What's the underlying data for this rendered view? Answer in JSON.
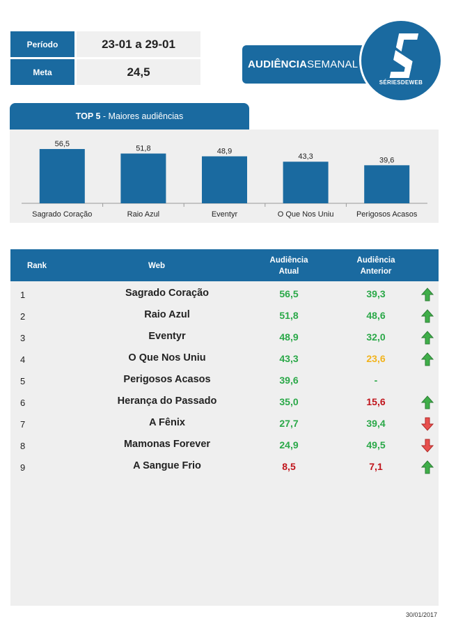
{
  "info": {
    "period_label": "Período",
    "period_value": "23-01 a 29-01",
    "goal_label": "Meta",
    "goal_value": "24,5"
  },
  "banner": {
    "bold": "AUDIÊNCIA",
    "light": "SEMANAL"
  },
  "logo": {
    "text": "SÉRIESDEWEB"
  },
  "chart_section": {
    "title_bold": "TOP 5",
    "title_rest": " - Maiores audiências"
  },
  "chart_data": {
    "type": "bar",
    "title": "TOP 5 - Maiores audiências",
    "categories": [
      "Sagrado Coração",
      "Raio Azul",
      "Eventyr",
      "O Que Nos Uniu",
      "Perigosos Acasos"
    ],
    "values": [
      56.5,
      51.8,
      48.9,
      43.3,
      39.6
    ],
    "value_labels": [
      "56,5",
      "51,8",
      "48,9",
      "43,3",
      "39,6"
    ],
    "ylim": [
      0,
      70
    ],
    "grid": false,
    "bar_color": "#1a6aa0"
  },
  "table": {
    "headers": {
      "rank": "Rank",
      "web": "Web",
      "current_l1": "Audiência",
      "current_l2": "Atual",
      "previous_l1": "Audiência",
      "previous_l2": "Anterior"
    },
    "rows": [
      {
        "rank": "1",
        "web": "Sagrado Coração",
        "current": "56,5",
        "current_color": "#2aa848",
        "previous": "39,3",
        "previous_color": "#2aa848",
        "trend": "up"
      },
      {
        "rank": "2",
        "web": "Raio Azul",
        "current": "51,8",
        "current_color": "#2aa848",
        "previous": "48,6",
        "previous_color": "#2aa848",
        "trend": "up"
      },
      {
        "rank": "3",
        "web": "Eventyr",
        "current": "48,9",
        "current_color": "#2aa848",
        "previous": "32,0",
        "previous_color": "#2aa848",
        "trend": "up"
      },
      {
        "rank": "4",
        "web": "O Que Nos Uniu",
        "current": "43,3",
        "current_color": "#2aa848",
        "previous": "23,6",
        "previous_color": "#f2b31c",
        "trend": "up"
      },
      {
        "rank": "5",
        "web": "Perigosos Acasos",
        "current": "39,6",
        "current_color": "#2aa848",
        "previous": "-",
        "previous_color": "#2aa848",
        "trend": "none"
      },
      {
        "rank": "6",
        "web": "Herança do Passado",
        "current": "35,0",
        "current_color": "#2aa848",
        "previous": "15,6",
        "previous_color": "#c0141b",
        "trend": "up"
      },
      {
        "rank": "7",
        "web": "A Fênix",
        "current": "27,7",
        "current_color": "#2aa848",
        "previous": "39,4",
        "previous_color": "#2aa848",
        "trend": "down"
      },
      {
        "rank": "8",
        "web": "Mamonas Forever",
        "current": "24,9",
        "current_color": "#2aa848",
        "previous": "49,5",
        "previous_color": "#2aa848",
        "trend": "down"
      },
      {
        "rank": "9",
        "web": "A Sangue Frio",
        "current": "8,5",
        "current_color": "#c0141b",
        "previous": "7,1",
        "previous_color": "#c0141b",
        "trend": "up"
      }
    ]
  },
  "footer": {
    "date": "30/01/2017"
  },
  "colors": {
    "accent": "#1a6aa0",
    "green": "#2aa848",
    "yellow": "#f2b31c",
    "red": "#c0141b",
    "arrow_up": "#3fae49",
    "arrow_down": "#e8504e"
  }
}
